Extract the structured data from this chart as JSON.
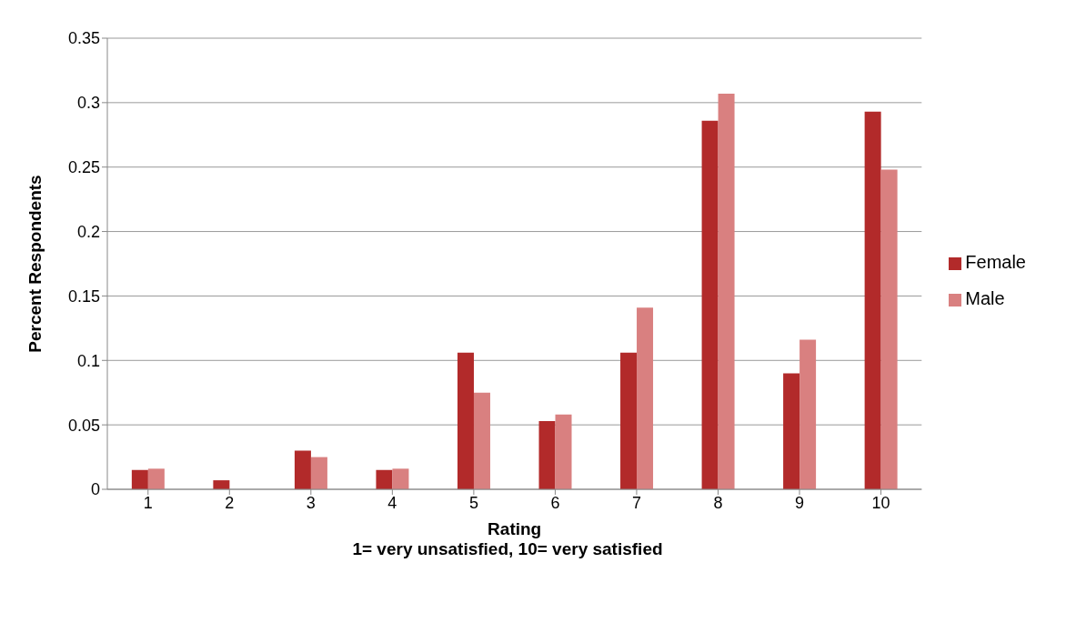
{
  "chart_data": {
    "type": "bar",
    "xlabel": "Rating",
    "ylabel": "Percent Respondents",
    "categories": [
      "1",
      "2",
      "3",
      "4",
      "5",
      "6",
      "7",
      "8",
      "9",
      "10"
    ],
    "series": [
      {
        "name": "Female",
        "color": "#b22a2a",
        "values": [
          0.015,
          0.007,
          0.03,
          0.015,
          0.106,
          0.053,
          0.106,
          0.286,
          0.09,
          0.293
        ]
      },
      {
        "name": "Male",
        "color": "#d98080",
        "values": [
          0.016,
          0,
          0.025,
          0.016,
          0.075,
          0.058,
          0.141,
          0.307,
          0.116,
          0.248
        ]
      }
    ],
    "ylim": [
      0,
      0.35
    ],
    "yticks": [
      0,
      0.05,
      0.1,
      0.15,
      0.2,
      0.25,
      0.3,
      0.35
    ],
    "grid": "y",
    "legend": "right",
    "annotations": [
      "1= very unsatisfied, 10= very satisfied"
    ]
  }
}
